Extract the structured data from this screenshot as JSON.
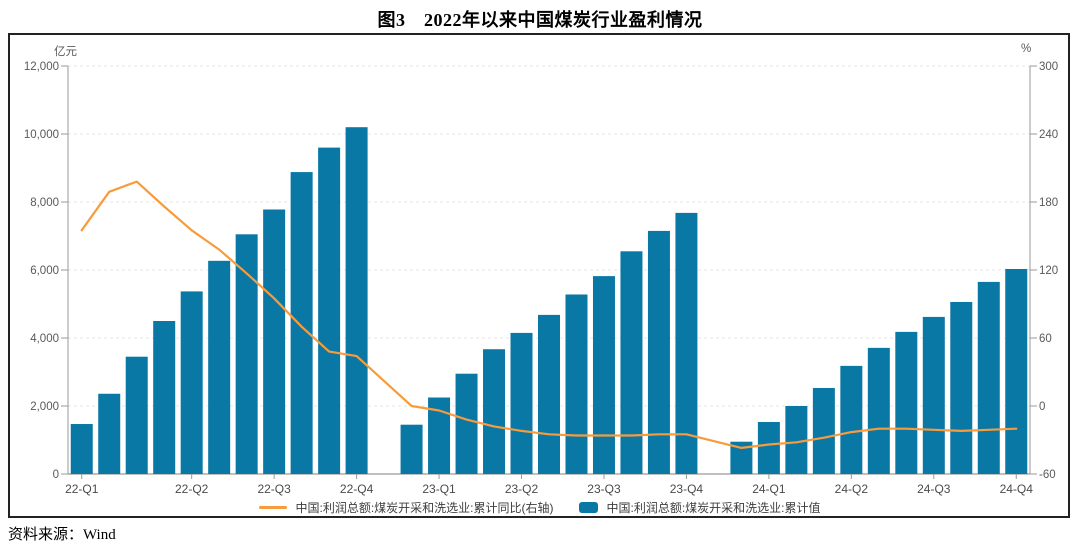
{
  "title": "图3　2022年以来中国煤炭行业盈利情况",
  "source": "资料来源：Wind",
  "chart_data": {
    "type": "bar",
    "title": "图3 2022年以来中国煤炭行业盈利情况",
    "grid": true,
    "legend_position": "bottom",
    "left_axis": {
      "unit": "亿元",
      "min": 0,
      "max": 12000,
      "ticks": [
        "0",
        "2,000",
        "4,000",
        "6,000",
        "8,000",
        "10,000",
        "12,000"
      ]
    },
    "right_axis": {
      "unit": "%",
      "min": -60,
      "max": 300,
      "ticks": [
        "-60",
        "0",
        "60",
        "120",
        "180",
        "240",
        "300"
      ]
    },
    "categories": [
      "2022-02",
      "2022-03",
      "2022-04",
      "2022-05",
      "2022-06",
      "2022-07",
      "2022-08",
      "2022-09",
      "2022-10",
      "2022-11",
      "2022-12",
      "2023-02",
      "2023-03",
      "2023-04",
      "2023-05",
      "2023-06",
      "2023-07",
      "2023-08",
      "2023-09",
      "2023-10",
      "2023-11",
      "2023-12",
      "2024-02",
      "2024-03",
      "2024-04",
      "2024-05",
      "2024-06",
      "2024-07",
      "2024-08",
      "2024-09",
      "2024-10",
      "2024-11",
      "2024-12"
    ],
    "series": [
      {
        "name": "中国:利润总额:煤炭开采和洗选业:累计同比(右轴)",
        "type": "line",
        "axis": "right",
        "values": [
          155,
          189,
          198,
          176,
          155,
          138,
          117,
          95,
          70,
          48,
          44,
          0,
          -4,
          -12,
          -18,
          -22,
          -25,
          -26,
          -26,
          -26,
          -25,
          -25,
          -37,
          -34,
          -32,
          -28,
          -23,
          -20,
          -20,
          -21,
          -22,
          -21,
          -20
        ]
      },
      {
        "name": "中国:利润总额:煤炭开采和洗选业:累计值",
        "type": "bar",
        "axis": "left",
        "values": [
          1470,
          2360,
          3450,
          4500,
          5370,
          6270,
          7050,
          7780,
          8880,
          9600,
          10200,
          1450,
          2250,
          2950,
          3670,
          4150,
          4680,
          5280,
          5820,
          6550,
          7150,
          7680,
          950,
          1530,
          2000,
          2530,
          3180,
          3710,
          4180,
          4620,
          5060,
          5650,
          6030
        ]
      }
    ],
    "x_quarter_ticks": [
      {
        "label": "22-Q1",
        "month": "2022-02"
      },
      {
        "label": "22-Q2",
        "month": "2022-06"
      },
      {
        "label": "22-Q3",
        "month": "2022-09"
      },
      {
        "label": "22-Q4",
        "month": "2022-12"
      },
      {
        "label": "23-Q1",
        "month": "2023-03"
      },
      {
        "label": "23-Q2",
        "month": "2023-06"
      },
      {
        "label": "23-Q3",
        "month": "2023-09"
      },
      {
        "label": "23-Q4",
        "month": "2023-12"
      },
      {
        "label": "24-Q1",
        "month": "2024-03"
      },
      {
        "label": "24-Q2",
        "month": "2024-06"
      },
      {
        "label": "24-Q3",
        "month": "2024-09"
      },
      {
        "label": "24-Q4",
        "month": "2024-12"
      }
    ],
    "colors": {
      "bar": "#0a78a5",
      "line": "#f89b3c",
      "grid": "#e4e4e4",
      "axis": "#9a9a9a",
      "tick_text": "#595959"
    }
  }
}
